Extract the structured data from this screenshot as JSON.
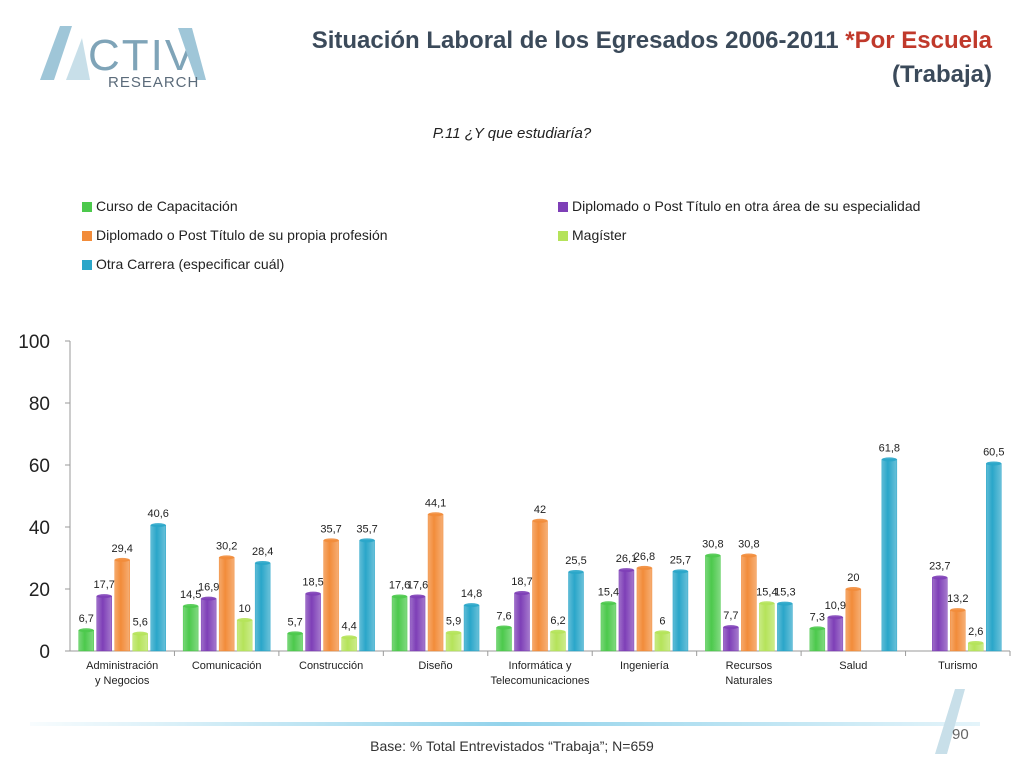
{
  "logo": {
    "name": "ACTIVA",
    "sub": "RESEARCH"
  },
  "header": {
    "title_main": "Situación Laboral de los Egresados 2006-2011 ",
    "title_accent": "*Por Escuela",
    "title_line2": "(Trabaja)",
    "question": "P.11 ¿Y que estudiaría?"
  },
  "footer": {
    "base": "Base: % Total Entrevistados “Trabaja”; N=659",
    "page": "90"
  },
  "chart_data": {
    "type": "bar",
    "categories": [
      "Administración y Negocios",
      "Comunicación",
      "Construcción",
      "Diseño",
      "Informática y Telecomunicaciones",
      "Ingeniería",
      "Recursos Naturales",
      "Salud",
      "Turismo"
    ],
    "ylim": [
      0,
      100
    ],
    "yticks": [
      0,
      20,
      40,
      60,
      80,
      100
    ],
    "grid": false,
    "legend_position": "top",
    "series": [
      {
        "name": "Curso de Capacitación",
        "color": "#4cc94c",
        "values": [
          6.7,
          14.5,
          5.7,
          17.6,
          7.6,
          15.4,
          30.8,
          7.3,
          null
        ],
        "labels": [
          "6,7",
          "14,5",
          "5,7",
          "17,6",
          "7,6",
          "15,4",
          "30,8",
          "7,3",
          ""
        ]
      },
      {
        "name": "Diplomado o Post Título en otra área de su especialidad",
        "color": "#7e3fb7",
        "values": [
          17.7,
          16.9,
          18.5,
          17.6,
          18.7,
          26.1,
          7.7,
          10.9,
          23.7
        ],
        "labels": [
          "17,7",
          "16,9",
          "18,5",
          "17,6",
          "18,7",
          "26,1",
          "7,7",
          "10,9",
          "23,7"
        ]
      },
      {
        "name": "Diplomado o Post Título de su propia profesión",
        "color": "#f28c3a",
        "values": [
          29.4,
          30.2,
          35.7,
          44.1,
          42,
          26.8,
          30.8,
          20,
          13.2
        ],
        "labels": [
          "29,4",
          "30,2",
          "35,7",
          "44,1",
          "42",
          "26,8",
          "30,8",
          "20",
          "13,2"
        ]
      },
      {
        "name": "Magíster",
        "color": "#b5e35a",
        "values": [
          5.6,
          10,
          4.4,
          5.9,
          6.2,
          6,
          15.4,
          null,
          2.6
        ],
        "labels": [
          "5,6",
          "10",
          "4,4",
          "5,9",
          "6,2",
          "6",
          "15,4",
          "",
          "2,6"
        ]
      },
      {
        "name": "Otra Carrera (especificar cuál)",
        "color": "#2aa6c9",
        "values": [
          40.6,
          28.4,
          35.7,
          14.8,
          25.5,
          25.7,
          15.3,
          61.8,
          60.5
        ],
        "labels": [
          "40,6",
          "28,4",
          "35,7",
          "14,8",
          "25,5",
          "25,7",
          "15,3",
          "61,8",
          "60,5"
        ]
      }
    ],
    "legend_order": [
      0,
      1,
      2,
      3,
      4
    ]
  }
}
